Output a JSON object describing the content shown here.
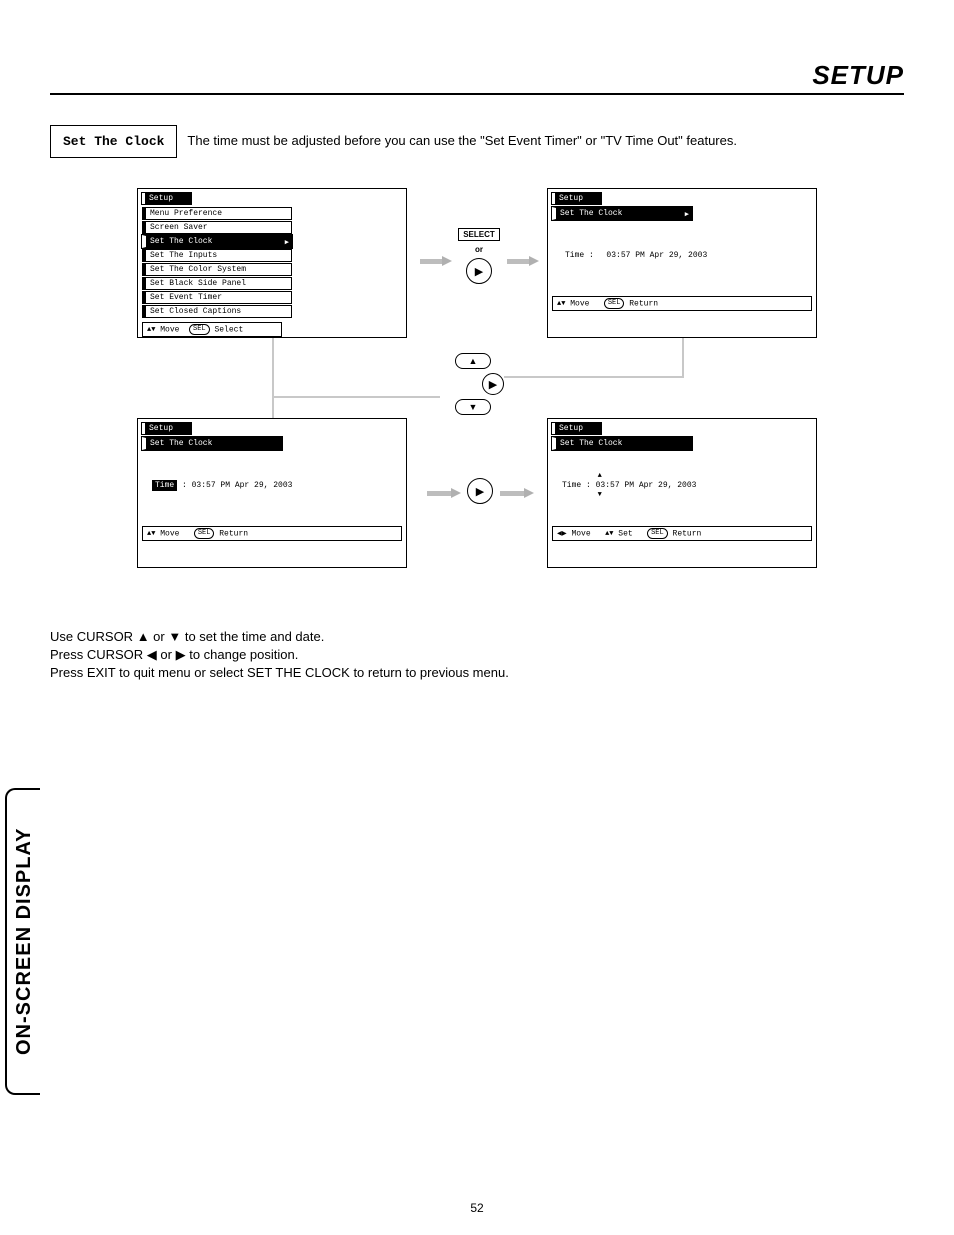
{
  "header": {
    "title": "SETUP"
  },
  "intro": {
    "box_label": "Set The Clock",
    "text": "The time must be adjusted before you can use the \"Set Event Timer\" or \"TV Time Out\" features."
  },
  "menu_screen": {
    "title": "Setup",
    "items": [
      {
        "label": "Menu Preference",
        "hi": false
      },
      {
        "label": "Screen Saver",
        "hi": false
      },
      {
        "label": "Set The Clock",
        "hi": true,
        "arrow": "▶"
      },
      {
        "label": "Set The Inputs",
        "hi": false
      },
      {
        "label": "Set The Color System",
        "hi": false
      },
      {
        "label": "Set Black Side Panel",
        "hi": false
      },
      {
        "label": "Set Event Timer",
        "hi": false
      },
      {
        "label": "Set Closed Captions",
        "hi": false
      }
    ],
    "footer_updown": "▲▼",
    "footer_move": "Move",
    "footer_sel": "SEL",
    "footer_select": "Select"
  },
  "clock_a": {
    "title": "Setup",
    "sub": "Set The Clock",
    "sub_arrow": "▶",
    "time_label": "Time :",
    "time_value": "03:57 PM Apr 29, 2003",
    "footer_updown": "▲▼",
    "footer_move": "Move",
    "footer_sel": "SEL",
    "footer_return": "Return"
  },
  "clock_b": {
    "title": "Setup",
    "sub": "Set The Clock",
    "time_label_hi": "Time",
    "colon": " : ",
    "time_value": "03:57 PM Apr 29, 2003",
    "footer_updown": "▲▼",
    "footer_move": "Move",
    "footer_sel": "SEL",
    "footer_return": "Return"
  },
  "clock_c": {
    "title": "Setup",
    "sub": "Set The Clock",
    "time_label": "Time : ",
    "hour": "03",
    "rest": ":57 PM Apr 29, 2003",
    "up": "▲",
    "down": "▼",
    "footer_lr": "◀▶",
    "footer_move": "Move",
    "footer_updown": "▲▼",
    "footer_set": "Set",
    "footer_sel": "SEL",
    "footer_return": "Return"
  },
  "controls": {
    "select": "SELECT",
    "or": "or",
    "right": "▶",
    "up": "▲",
    "down": "▼"
  },
  "instructions": {
    "l1a": "Use CURSOR ",
    "l1b": "▲",
    "l1c": " or ",
    "l1d": "▼",
    "l1e": " to set the time and date.",
    "l2a": "Press CURSOR ",
    "l2b": "◀",
    "l2c": " or ",
    "l2d": "▶",
    "l2e": " to change position.",
    "l3": "Press EXIT to quit menu or select SET THE CLOCK to return to previous menu."
  },
  "side_tab": "ON-SCREEN DISPLAY",
  "page_num": "52"
}
